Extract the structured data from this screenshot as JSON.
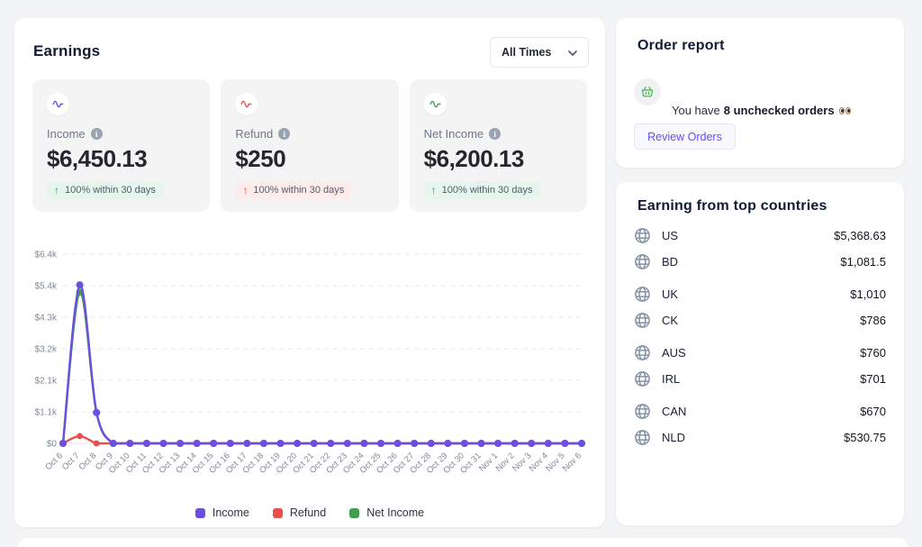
{
  "earnings_panel": {
    "title": "Earnings",
    "time_filter": {
      "selected": "All Times"
    },
    "stats": [
      {
        "id": "income",
        "label": "Income",
        "value": "$6,450.13",
        "badge": "100% within 30 days",
        "trend": "up",
        "accent": "#6c4ee0",
        "badge_bg": "#e7f6ec",
        "arrow_color": "#22a55e"
      },
      {
        "id": "refund",
        "label": "Refund",
        "value": "$250",
        "badge": "100% within 30 days",
        "trend": "up",
        "accent": "#ea4e4e",
        "badge_bg": "#fdeceb",
        "arrow_color": "#e5484d"
      },
      {
        "id": "net_income",
        "label": "Net Income",
        "value": "$6,200.13",
        "badge": "100% within 30 days",
        "trend": "up",
        "accent": "#42a04d",
        "badge_bg": "#e7f6ec",
        "arrow_color": "#22a55e"
      }
    ]
  },
  "chart_data": {
    "type": "line",
    "x": [
      "Oct 6",
      "Oct 7",
      "Oct 8",
      "Oct 9",
      "Oct 10",
      "Oct 11",
      "Oct 12",
      "Oct 13",
      "Oct 14",
      "Oct 15",
      "Oct 16",
      "Oct 17",
      "Oct 18",
      "Oct 19",
      "Oct 20",
      "Oct 21",
      "Oct 22",
      "Oct 23",
      "Oct 24",
      "Oct 25",
      "Oct 26",
      "Oct 27",
      "Oct 28",
      "Oct 29",
      "Oct 30",
      "Oct 31",
      "Nov 1",
      "Nov 2",
      "Nov 3",
      "Nov 4",
      "Nov 5",
      "Nov 6"
    ],
    "series": [
      {
        "name": "Income",
        "color": "#6c4ee0",
        "values": [
          0,
          5400,
          1050.13,
          0,
          0,
          0,
          0,
          0,
          0,
          0,
          0,
          0,
          0,
          0,
          0,
          0,
          0,
          0,
          0,
          0,
          0,
          0,
          0,
          0,
          0,
          0,
          0,
          0,
          0,
          0,
          0,
          0
        ]
      },
      {
        "name": "Refund",
        "color": "#ea4e4e",
        "values": [
          0,
          250,
          0,
          0,
          0,
          0,
          0,
          0,
          0,
          0,
          0,
          0,
          0,
          0,
          0,
          0,
          0,
          0,
          0,
          0,
          0,
          0,
          0,
          0,
          0,
          0,
          0,
          0,
          0,
          0,
          0,
          0
        ]
      },
      {
        "name": "Net Income",
        "color": "#42a04d",
        "values": [
          0,
          5150,
          1050.13,
          0,
          0,
          0,
          0,
          0,
          0,
          0,
          0,
          0,
          0,
          0,
          0,
          0,
          0,
          0,
          0,
          0,
          0,
          0,
          0,
          0,
          0,
          0,
          0,
          0,
          0,
          0,
          0,
          0
        ]
      }
    ],
    "ylim": [
      0,
      6450
    ],
    "yticks": [
      {
        "value": 0,
        "label": "$0"
      },
      {
        "value": 1075,
        "label": "$1.1k"
      },
      {
        "value": 2150,
        "label": "$2.1k"
      },
      {
        "value": 3225,
        "label": "$3.2k"
      },
      {
        "value": 4300,
        "label": "$4.3k"
      },
      {
        "value": 5375,
        "label": "$5.4k"
      },
      {
        "value": 6450,
        "label": "$6.4k"
      }
    ],
    "title": "",
    "xlabel": "",
    "ylabel": "",
    "grid": "dashed-horizontal",
    "legend_position": "bottom"
  },
  "order_report": {
    "title": "Order report",
    "message_prefix": "You have",
    "message_bold": "8 unchecked orders",
    "message_emoji": "👀",
    "button_label": "Review Orders"
  },
  "top_countries": {
    "title": "Earning from top countries",
    "rows": [
      {
        "code": "US",
        "amount": "$5,368.63"
      },
      {
        "code": "BD",
        "amount": "$1,081.5"
      },
      {
        "code": "UK",
        "amount": "$1,010"
      },
      {
        "code": "CK",
        "amount": "$786"
      },
      {
        "code": "AUS",
        "amount": "$760"
      },
      {
        "code": "IRL",
        "amount": "$701"
      },
      {
        "code": "CAN",
        "amount": "$670"
      },
      {
        "code": "NLD",
        "amount": "$530.75"
      }
    ]
  }
}
